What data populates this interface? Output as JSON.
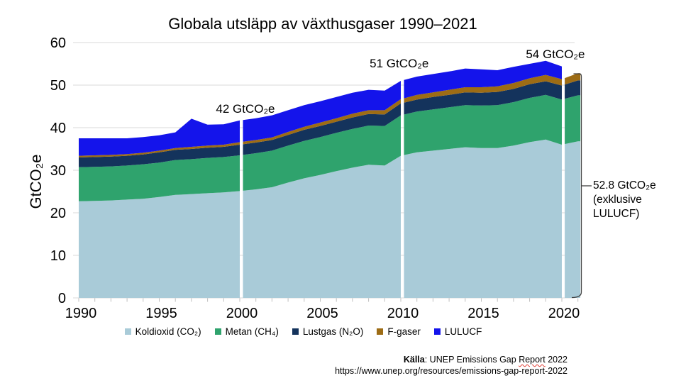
{
  "title": "Globala utsläpp av växthusgaser 1990–2021",
  "y_axis_label": "GtCO₂e",
  "chart_data": {
    "type": "area",
    "stacked": true,
    "title": "Globala utsläpp av växthusgaser 1990–2021",
    "ylabel": "GtCO₂e",
    "ylim": [
      0,
      60
    ],
    "y_ticks": [
      0,
      10,
      20,
      30,
      40,
      50,
      60
    ],
    "x_ticks": [
      1990,
      1995,
      2000,
      2005,
      2010,
      2015,
      2020
    ],
    "grid": "horizontal",
    "legend_position": "bottom",
    "separator_years": [
      2000,
      2010,
      2020
    ],
    "years": [
      1990,
      1991,
      1992,
      1993,
      1994,
      1995,
      1996,
      1997,
      1998,
      1999,
      2000,
      2001,
      2002,
      2003,
      2004,
      2005,
      2006,
      2007,
      2008,
      2009,
      2010,
      2011,
      2012,
      2013,
      2014,
      2015,
      2016,
      2017,
      2018,
      2019,
      2020,
      2021
    ],
    "series": [
      {
        "id": "co2",
        "name": "Koldioxid (CO₂)",
        "color": "#a9cbd8",
        "values": [
          22.7,
          22.8,
          22.9,
          23.1,
          23.3,
          23.7,
          24.2,
          24.4,
          24.6,
          24.8,
          25.1,
          25.5,
          26.0,
          27.1,
          28.1,
          28.9,
          29.8,
          30.6,
          31.3,
          31.1,
          33.4,
          34.2,
          34.6,
          35.0,
          35.4,
          35.2,
          35.2,
          35.8,
          36.6,
          37.2,
          36.0,
          36.8
        ]
      },
      {
        "id": "ch4",
        "name": "Metan (CH₄)",
        "color": "#2fa36d",
        "values": [
          8.0,
          8.0,
          8.0,
          8.0,
          8.1,
          8.1,
          8.2,
          8.2,
          8.3,
          8.3,
          8.4,
          8.5,
          8.6,
          8.7,
          8.8,
          8.9,
          9.0,
          9.1,
          9.2,
          9.3,
          9.5,
          9.6,
          9.7,
          9.8,
          9.9,
          10.0,
          10.1,
          10.2,
          10.4,
          10.5,
          10.6,
          10.8
        ]
      },
      {
        "id": "n2o",
        "name": "Lustgas (N₂O)",
        "color": "#14335c",
        "values": [
          2.3,
          2.3,
          2.3,
          2.3,
          2.3,
          2.4,
          2.4,
          2.4,
          2.4,
          2.4,
          2.5,
          2.5,
          2.5,
          2.5,
          2.6,
          2.6,
          2.6,
          2.7,
          2.7,
          2.7,
          2.8,
          2.8,
          2.9,
          2.9,
          3.0,
          3.0,
          3.1,
          3.1,
          3.2,
          3.2,
          3.3,
          3.5
        ]
      },
      {
        "id": "fgas",
        "name": "F-gaser",
        "color": "#9d6c15",
        "values": [
          0.4,
          0.4,
          0.4,
          0.4,
          0.4,
          0.4,
          0.4,
          0.5,
          0.5,
          0.5,
          0.6,
          0.6,
          0.6,
          0.7,
          0.7,
          0.8,
          0.8,
          0.9,
          0.9,
          1.0,
          1.0,
          1.1,
          1.1,
          1.2,
          1.2,
          1.3,
          1.3,
          1.4,
          1.4,
          1.5,
          1.5,
          1.7
        ]
      },
      {
        "id": "lulucf",
        "name": "LULUCF",
        "color": "#1414eb",
        "values": [
          4.1,
          4.0,
          3.9,
          3.7,
          3.7,
          3.6,
          3.7,
          6.6,
          4.9,
          4.8,
          5.1,
          5.1,
          5.2,
          5.1,
          5.1,
          5.0,
          5.0,
          4.9,
          4.8,
          4.6,
          4.3,
          4.3,
          4.3,
          4.3,
          4.4,
          4.2,
          3.8,
          3.8,
          3.4,
          3.3,
          3.0,
          null
        ]
      }
    ],
    "annotations": [
      {
        "label": "42 GtCO₂e",
        "year": 2000.35,
        "value": 43.5
      },
      {
        "label": "51 GtCO₂e",
        "year": 2009.9,
        "value": 54.2
      },
      {
        "label": "54 GtCO₂e",
        "year": 2019.6,
        "value": 56.3
      }
    ],
    "bracket_label": "52.8 GtCO₂e\n(exklusive\nLULUCF)"
  },
  "footer": {
    "source_label": "Källa",
    "source_text": ": UNEP Emissions Gap ",
    "source_flagged_word": "Report",
    "source_suffix": " 2022",
    "url": "https://www.unep.org/resources/emissions-gap-report-2022"
  }
}
